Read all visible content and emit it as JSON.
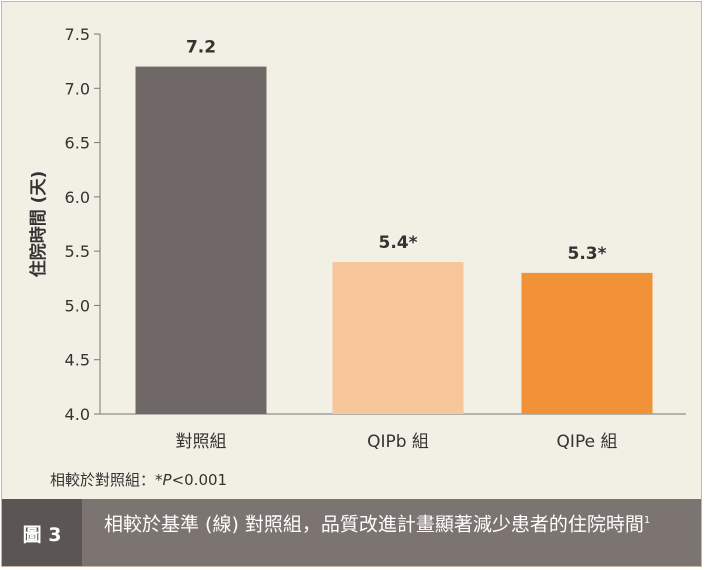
{
  "chart_data": {
    "type": "bar",
    "categories": [
      "對照組",
      "QIPb 組",
      "QIPe 組"
    ],
    "values": [
      7.2,
      5.4,
      5.3
    ],
    "data_labels": [
      "7.2",
      "5.4*",
      "5.3*"
    ],
    "colors": [
      "#706866",
      "#f8c69b",
      "#f29238"
    ],
    "ylabel": "住院時間 (天)",
    "ylim": [
      4.0,
      7.5
    ],
    "yticks": [
      4.0,
      4.5,
      5.0,
      5.5,
      6.0,
      6.5,
      7.0,
      7.5
    ],
    "ytick_labels": [
      "4.0",
      "4.5",
      "5.0",
      "5.5",
      "6.0",
      "6.5",
      "7.0",
      "7.5"
    ],
    "grid": false,
    "legend": "none"
  },
  "footnote": {
    "prefix": "相較於對照組：*",
    "p_symbol": "P",
    "suffix": "<0.001"
  },
  "figure": {
    "label": "圖 3",
    "caption": "相較於基準 (線) 對照組，品質改進計畫顯著減少患者的住院時間",
    "ref": "1"
  }
}
